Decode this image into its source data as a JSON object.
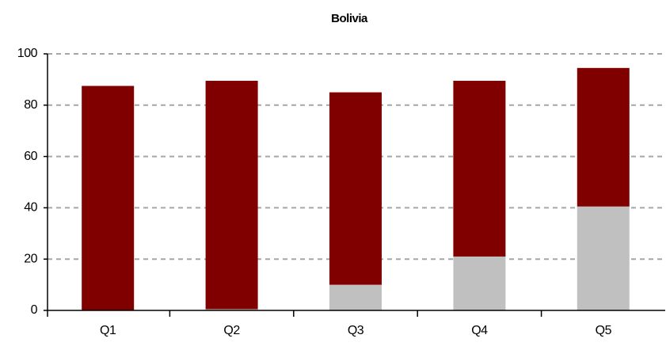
{
  "chart_data": {
    "type": "stacked_bar",
    "title": "Bolivia",
    "categories": [
      "Q1",
      "Q2",
      "Q3",
      "Q4",
      "Q5"
    ],
    "series": [
      {
        "color": "#c0c0c0",
        "values": [
          0,
          0.5,
          10,
          21,
          40.5
        ]
      },
      {
        "color": "#800000",
        "values": [
          87.5,
          89,
          75,
          68.5,
          54
        ]
      }
    ],
    "ylim": [
      0,
      100
    ],
    "yticks": [
      0,
      20,
      40,
      60,
      80,
      100
    ],
    "grid": true
  }
}
